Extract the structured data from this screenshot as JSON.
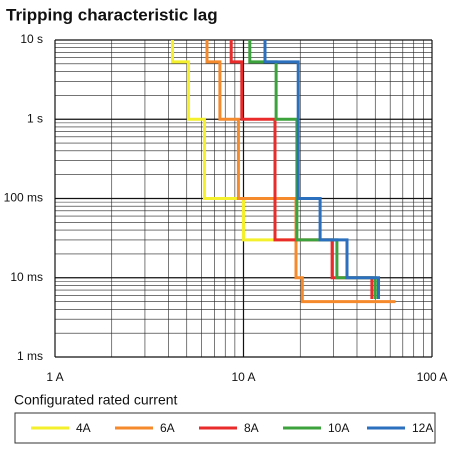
{
  "chart_data": {
    "type": "line",
    "title": "Tripping characteristic lag",
    "xscale": "log",
    "yscale": "log",
    "grid": true,
    "xlim": [
      1,
      100
    ],
    "ylim": [
      0.001,
      10
    ],
    "xticks": [
      {
        "value": 1,
        "label": "1 A"
      },
      {
        "value": 10,
        "label": "10 A"
      },
      {
        "value": 100,
        "label": "100 A"
      }
    ],
    "yticks": [
      {
        "value": 10,
        "label": "10 s"
      },
      {
        "value": 1,
        "label": "1 s"
      },
      {
        "value": 0.1,
        "label": "100 ms"
      },
      {
        "value": 0.01,
        "label": "10 ms"
      },
      {
        "value": 0.001,
        "label": "1 ms"
      }
    ],
    "legend_title": "Configurated rated current",
    "legend_position": "bottom",
    "series": [
      {
        "name": "4A",
        "color": "#f4f02c",
        "x": [
          4.2,
          4.2,
          5.1,
          5.1,
          6.2,
          6.2,
          10,
          10,
          19
        ],
        "values": [
          10,
          5.3,
          5.3,
          1,
          1,
          0.1,
          0.1,
          0.03,
          0.03
        ]
      },
      {
        "name": "6A",
        "color": "#f58a2c",
        "x": [
          6.4,
          6.4,
          7.5,
          7.5,
          9.4,
          9.4,
          19,
          19,
          20.5,
          20.5,
          64
        ],
        "values": [
          10,
          5.3,
          5.3,
          1,
          1,
          0.1,
          0.1,
          0.01,
          0.01,
          0.005,
          0.005
        ]
      },
      {
        "name": "8A",
        "color": "#ea2b2b",
        "x": [
          8.6,
          8.6,
          9.8,
          9.8,
          14.7,
          14.7,
          29.5,
          29.5,
          48,
          48
        ],
        "values": [
          10,
          5.3,
          5.3,
          1,
          1,
          0.03,
          0.03,
          0.01,
          0.01,
          0.0054
        ]
      },
      {
        "name": "10A",
        "color": "#3ca33c",
        "x": [
          10.8,
          10.8,
          14.9,
          14.9,
          19.2,
          19.2,
          31.3,
          31.3,
          50,
          50
        ],
        "values": [
          10,
          5.3,
          5.3,
          1,
          1,
          0.03,
          0.03,
          0.01,
          0.01,
          0.0054
        ]
      },
      {
        "name": "12A",
        "color": "#2b6fbf",
        "x": [
          13,
          13,
          19.5,
          19.5,
          25.5,
          25.5,
          35.4,
          35.4,
          52,
          52
        ],
        "values": [
          10,
          5.3,
          5.3,
          0.1,
          0.1,
          0.03,
          0.03,
          0.01,
          0.01,
          0.0054
        ]
      }
    ]
  }
}
